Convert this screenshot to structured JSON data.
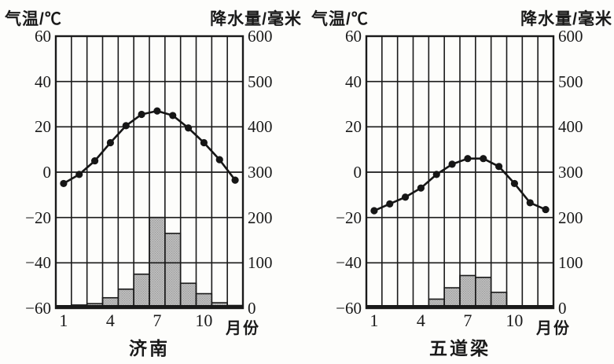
{
  "figure": {
    "description": "Two monthly temperature and precipitation climate charts from a scanned textbook figure",
    "background_color": "#fdfdfb"
  },
  "colors": {
    "axis": "#1a1a1a",
    "line": "#161616",
    "dot": "#161616",
    "bar_fill": "#bdbdbd",
    "bar_stipple": "#7f7f7f"
  },
  "chart_data": [
    {
      "type": "combo",
      "title": "济南",
      "xlabel": "月份",
      "months": [
        1,
        2,
        3,
        4,
        5,
        6,
        7,
        8,
        9,
        10,
        11,
        12
      ],
      "x_tick_months": [
        1,
        4,
        7,
        10
      ],
      "left_axis": {
        "label": "气温/℃",
        "range": [
          -60,
          60
        ],
        "ticks": [
          60,
          40,
          20,
          0,
          -20,
          -40,
          -60
        ]
      },
      "right_axis": {
        "label": "降水量/毫米",
        "range": [
          0,
          600
        ],
        "ticks": [
          600,
          500,
          400,
          300,
          200,
          100,
          0
        ]
      },
      "grid": true,
      "legend": "none",
      "series": [
        {
          "name": "气温",
          "type": "line",
          "axis": "left",
          "values": [
            -5,
            -1,
            5,
            13,
            20.5,
            25.5,
            27,
            25,
            19.5,
            13,
            5.5,
            -3.5
          ]
        },
        {
          "name": "降水量",
          "type": "bar",
          "axis": "right",
          "values": [
            5,
            7,
            10,
            23,
            42,
            75,
            200,
            165,
            55,
            32,
            12,
            6
          ]
        }
      ]
    },
    {
      "type": "combo",
      "title": "五道梁",
      "xlabel": "月份",
      "months": [
        1,
        2,
        3,
        4,
        5,
        6,
        7,
        8,
        9,
        10,
        11,
        12
      ],
      "x_tick_months": [
        1,
        4,
        7,
        10
      ],
      "left_axis": {
        "label": "气温/℃",
        "range": [
          -60,
          60
        ],
        "ticks": [
          60,
          40,
          20,
          0,
          -20,
          -40,
          -60
        ]
      },
      "right_axis": {
        "label": "降水量/毫米",
        "range": [
          0,
          600
        ],
        "ticks": [
          600,
          500,
          400,
          300,
          200,
          100,
          0
        ]
      },
      "grid": true,
      "legend": "none",
      "series": [
        {
          "name": "气温",
          "type": "line",
          "axis": "left",
          "values": [
            -17,
            -14,
            -11,
            -7,
            -1,
            3.5,
            6,
            6,
            2.5,
            -5,
            -13.5,
            -16.5
          ]
        },
        {
          "name": "降水量",
          "type": "bar",
          "axis": "right",
          "values": [
            2,
            2,
            3,
            4,
            20,
            45,
            72,
            68,
            35,
            2,
            2,
            2
          ]
        }
      ]
    }
  ]
}
